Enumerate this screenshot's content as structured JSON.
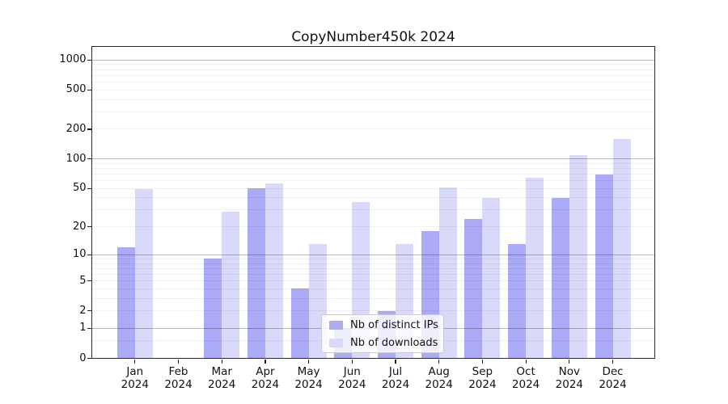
{
  "chart_data": {
    "type": "bar",
    "title": "CopyNumber450k 2024",
    "year": "2024",
    "categories": [
      "Jan",
      "Feb",
      "Mar",
      "Apr",
      "May",
      "Jun",
      "Jul",
      "Aug",
      "Sep",
      "Oct",
      "Nov",
      "Dec"
    ],
    "series": [
      {
        "name": "Nb of distinct IPs",
        "color": "#aaaaf6",
        "values": [
          12,
          0,
          9,
          50,
          4,
          1,
          2,
          18,
          24,
          13,
          40,
          70
        ]
      },
      {
        "name": "Nb of downloads",
        "color": "#d9d9f9",
        "values": [
          49,
          0,
          29,
          56,
          13,
          36,
          13,
          51,
          40,
          65,
          110,
          160
        ]
      }
    ],
    "y_ticks": [
      0,
      1,
      2,
      5,
      10,
      20,
      50,
      100,
      200,
      500,
      1000
    ],
    "ylim": [
      0,
      1350
    ],
    "yscale": "log10(1+x)",
    "grid": "horizontal major lines at powers of 10, faint log minor lines",
    "legend_position": "lower center",
    "xlabel": "",
    "ylabel": ""
  }
}
